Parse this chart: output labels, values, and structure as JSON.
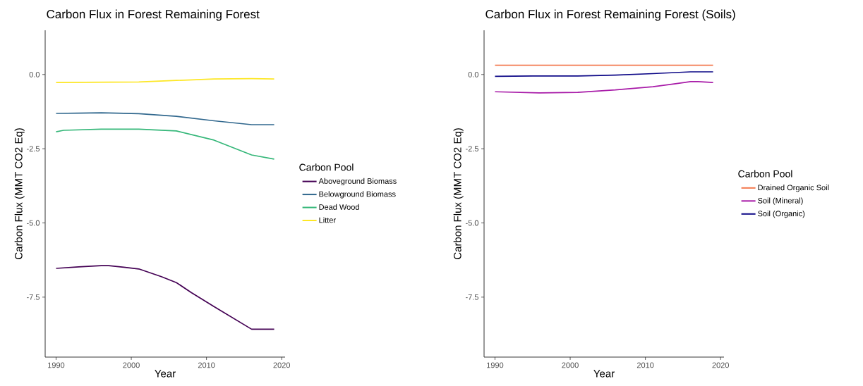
{
  "chart_data": [
    {
      "type": "line",
      "title": "Carbon Flux in Forest Remaining Forest",
      "xlabel": "Year",
      "ylabel": "Carbon Flux (MMT CO2 Eq)",
      "legend_title": "Carbon Pool",
      "legend": "right",
      "xlim": [
        1988.55,
        2020.45
      ],
      "xticks": [
        1990,
        2000,
        2010,
        2020
      ],
      "ylim": [
        -9.52,
        1.49
      ],
      "yticks": [
        {
          "value": -7.5,
          "label": "-7.5"
        },
        {
          "value": -5,
          "label": "-5.0"
        },
        {
          "value": -2.5,
          "label": "-2.5"
        },
        {
          "value": 0,
          "label": "0.0"
        }
      ],
      "series": [
        {
          "name": "Aboveground Biomass",
          "color": "#440154",
          "x": [
            1990,
            1993,
            1996,
            1997,
            1999,
            2001,
            2004,
            2006,
            2008,
            2011,
            2016,
            2019
          ],
          "values": [
            -6.53,
            -6.48,
            -6.44,
            -6.44,
            -6.49,
            -6.55,
            -6.81,
            -7.01,
            -7.35,
            -7.82,
            -8.58,
            -8.58
          ]
        },
        {
          "name": "Belowground Biomass",
          "color": "#31688e",
          "x": [
            1990,
            1993,
            1996,
            2001,
            2006,
            2011,
            2016,
            2019
          ],
          "values": [
            -1.31,
            -1.3,
            -1.29,
            -1.32,
            -1.41,
            -1.56,
            -1.69,
            -1.69
          ]
        },
        {
          "name": "Dead Wood",
          "color": "#35b779",
          "x": [
            1990,
            1991,
            1996,
            2001,
            2006,
            2011,
            2016,
            2019
          ],
          "values": [
            -1.93,
            -1.88,
            -1.84,
            -1.84,
            -1.9,
            -2.21,
            -2.71,
            -2.85
          ]
        },
        {
          "name": "Litter",
          "color": "#fde725",
          "x": [
            1990,
            2001,
            2006,
            2011,
            2016,
            2019
          ],
          "values": [
            -0.27,
            -0.25,
            -0.2,
            -0.15,
            -0.14,
            -0.15
          ]
        }
      ]
    },
    {
      "type": "line",
      "title": "Carbon Flux in Forest Remaining Forest (Soils)",
      "xlabel": "Year",
      "ylabel": "Carbon Flux (MMT CO2 Eq)",
      "legend_title": "Carbon Pool",
      "legend": "right",
      "xlim": [
        1988.55,
        2020.45
      ],
      "xticks": [
        1990,
        2000,
        2010,
        2020
      ],
      "ylim": [
        -9.52,
        1.49
      ],
      "yticks": [
        {
          "value": -7.5,
          "label": "-7.5"
        },
        {
          "value": -5,
          "label": "-5.0"
        },
        {
          "value": -2.5,
          "label": "-2.5"
        },
        {
          "value": 0,
          "label": "0.0"
        }
      ],
      "series": [
        {
          "name": "Drained Organic Soil",
          "color": "#f4794e",
          "x": [
            1990,
            2019
          ],
          "values": [
            0.31,
            0.31
          ]
        },
        {
          "name": "Soil (Mineral)",
          "color": "#a81ba8",
          "x": [
            1990,
            1996,
            2001,
            2006,
            2011,
            2014,
            2016,
            2017,
            2019
          ],
          "values": [
            -0.58,
            -0.62,
            -0.6,
            -0.52,
            -0.41,
            -0.31,
            -0.24,
            -0.24,
            -0.27
          ]
        },
        {
          "name": "Soil (Organic)",
          "color": "#0d0887",
          "x": [
            1990,
            1995,
            2001,
            2006,
            2011,
            2016,
            2019
          ],
          "values": [
            -0.06,
            -0.05,
            -0.05,
            -0.02,
            0.03,
            0.09,
            0.09
          ]
        }
      ]
    }
  ]
}
